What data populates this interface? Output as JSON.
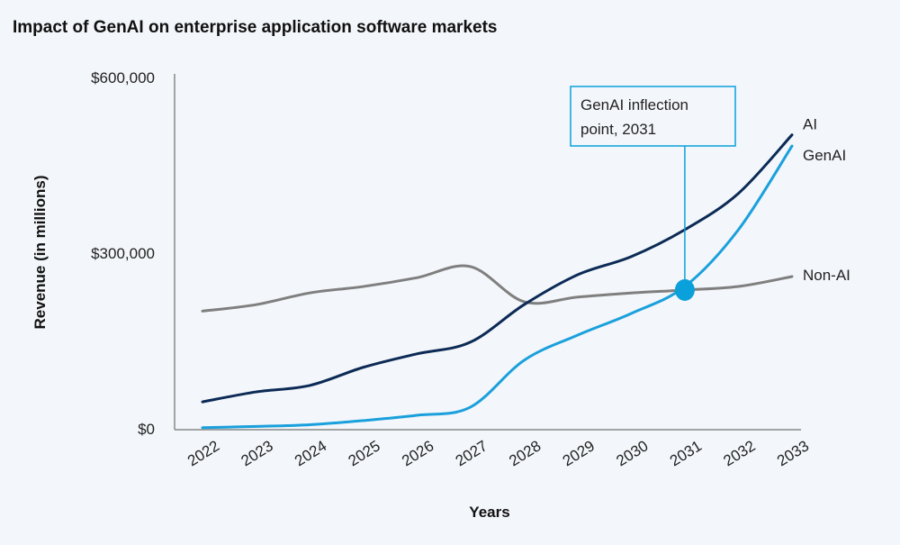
{
  "chart_data": {
    "type": "line",
    "title": "Impact of GenAI on enterprise application software markets",
    "xlabel": "Years",
    "ylabel": "Revenue (in millions)",
    "x": [
      "2022",
      "2023",
      "2024",
      "2025",
      "2026",
      "2027",
      "2028",
      "2029",
      "2030",
      "2031",
      "2032",
      "2033"
    ],
    "ylim": [
      0,
      600000
    ],
    "yticks": [
      0,
      300000,
      600000
    ],
    "ytick_labels": [
      "$0",
      "$300,000",
      "$600,000"
    ],
    "grid": false,
    "legend": "line-end labels",
    "series": [
      {
        "name": "AI",
        "color": "#0b2a55",
        "values": [
          46000,
          63000,
          74000,
          105000,
          128000,
          148000,
          212000,
          263000,
          294000,
          340000,
          402000,
          502000
        ]
      },
      {
        "name": "GenAI",
        "color": "#1aa0dc",
        "values": [
          2000,
          4000,
          7000,
          14000,
          23000,
          37000,
          117000,
          160000,
          197000,
          243000,
          340000,
          483000
        ]
      },
      {
        "name": "Non-AI",
        "color": "#7f7f7f",
        "values": [
          201000,
          212000,
          232000,
          243000,
          258000,
          277000,
          217000,
          225000,
          232000,
          237000,
          243000,
          260000
        ]
      }
    ],
    "annotation": {
      "text_line1": "GenAI inflection",
      "text_line2": "point, 2031",
      "x": "2031",
      "y": 237000,
      "color": "#0aa0dc"
    }
  }
}
